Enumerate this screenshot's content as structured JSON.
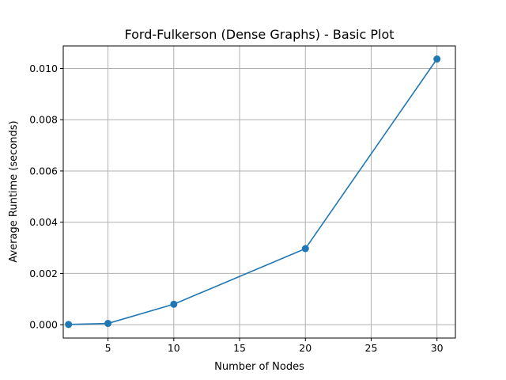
{
  "chart_data": {
    "type": "line",
    "title": "Ford-Fulkerson (Dense Graphs) - Basic Plot",
    "xlabel": "Number of Nodes",
    "ylabel": "Average Runtime (seconds)",
    "xlim": [
      1.6,
      31.4
    ],
    "ylim": [
      -0.00052,
      0.01088
    ],
    "xticks": [
      5,
      10,
      15,
      20,
      25,
      30
    ],
    "xtick_labels": [
      "5",
      "10",
      "15",
      "20",
      "25",
      "30"
    ],
    "yticks": [
      0.0,
      0.002,
      0.004,
      0.006,
      0.008,
      0.01
    ],
    "ytick_labels": [
      "0.000",
      "0.002",
      "0.004",
      "0.006",
      "0.008",
      "0.010"
    ],
    "grid": true,
    "series": [
      {
        "color": "#1f77b4",
        "marker": "circle",
        "x": [
          2,
          5,
          10,
          20,
          30
        ],
        "y": [
          1e-05,
          5e-05,
          0.0008,
          0.00297,
          0.01037
        ]
      }
    ]
  }
}
